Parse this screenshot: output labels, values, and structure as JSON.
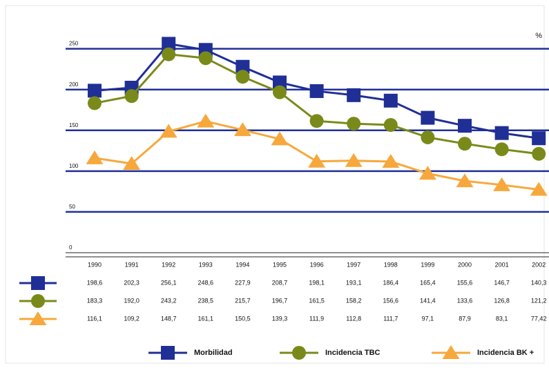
{
  "chart_data": {
    "type": "line",
    "unit_label": "%",
    "categories": [
      "1990",
      "1991",
      "1992",
      "1993",
      "1994",
      "1995",
      "1996",
      "1997",
      "1998",
      "1999",
      "2000",
      "2001",
      "2002"
    ],
    "series": [
      {
        "name": "Morbilidad",
        "color": "#1f2f96",
        "marker": "square",
        "values": [
          198.6,
          202.3,
          256.1,
          248.6,
          227.9,
          208.7,
          198.1,
          193.1,
          186.4,
          165.4,
          155.6,
          146.7,
          140.3
        ],
        "value_labels": [
          "198,6",
          "202,3",
          "256,1",
          "248,6",
          "227,9",
          "208,7",
          "198,1",
          "193,1",
          "186,4",
          "165,4",
          "155,6",
          "146,7",
          "140,3"
        ]
      },
      {
        "name": "Incidencia TBC",
        "color": "#7a8a1a",
        "marker": "circle",
        "values": [
          183.3,
          192.0,
          243.2,
          238.5,
          215.7,
          196.7,
          161.5,
          158.2,
          156.6,
          141.4,
          133.6,
          126.8,
          121.2
        ],
        "value_labels": [
          "183,3",
          "192,0",
          "243,2",
          "238,5",
          "215,7",
          "196,7",
          "161,5",
          "158,2",
          "156,6",
          "141,4",
          "133,6",
          "126,8",
          "121,2"
        ]
      },
      {
        "name": "Incidencia BK +",
        "color": "#f7a83c",
        "marker": "triangle",
        "values": [
          116.1,
          109.2,
          148.7,
          161.1,
          150.5,
          139.3,
          111.9,
          112.8,
          111.7,
          97.1,
          87.9,
          83.1,
          77.42
        ],
        "value_labels": [
          "116,1",
          "109,2",
          "148,7",
          "161,1",
          "150,5",
          "139,3",
          "111,9",
          "112,8",
          "111,7",
          "97,1",
          "87,9",
          "83,1",
          "77,42"
        ]
      }
    ],
    "ylim": [
      0,
      270
    ],
    "yticks": [
      0,
      50,
      100,
      150,
      200,
      250
    ],
    "grid": true
  }
}
